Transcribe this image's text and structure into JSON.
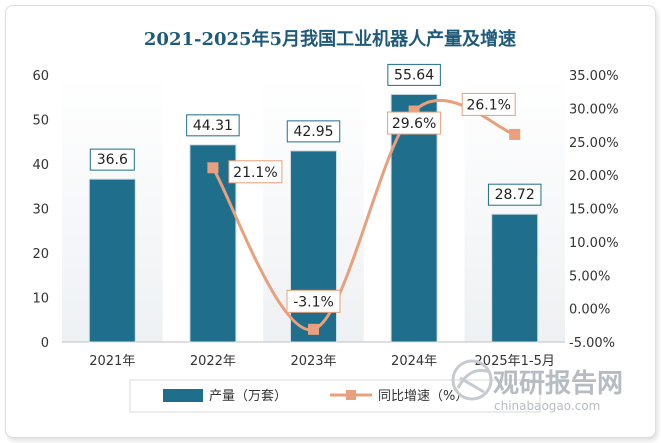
{
  "chart_data": {
    "type": "bar",
    "title": "2021-2025年5月我国工业机器人产量及增速",
    "categories": [
      "2021年",
      "2022年",
      "2023年",
      "2024年",
      "2025年1-5月"
    ],
    "series": [
      {
        "name": "产量（万套）",
        "type": "bar",
        "axis": "left",
        "values": [
          36.6,
          44.31,
          42.95,
          55.64,
          28.72
        ],
        "labels": [
          "36.6",
          "44.31",
          "42.95",
          "55.64",
          "28.72"
        ],
        "color": "#1f6e8c"
      },
      {
        "name": "同比增速（%）",
        "type": "line",
        "axis": "right",
        "values": [
          null,
          21.1,
          -3.1,
          29.6,
          26.1
        ],
        "labels": [
          "",
          "21.1%",
          "-3.1%",
          "29.6%",
          "26.1%"
        ],
        "color": "#e8a07e"
      }
    ],
    "y_left": {
      "min": 0,
      "max": 60,
      "ticks": [
        0,
        10,
        20,
        30,
        40,
        50,
        60
      ],
      "tick_labels": [
        "0",
        "10",
        "20",
        "30",
        "40",
        "50",
        "60"
      ]
    },
    "y_right": {
      "min": -5,
      "max": 35,
      "ticks": [
        -5,
        0,
        5,
        10,
        15,
        20,
        25,
        30,
        35
      ],
      "tick_labels": [
        "-5.00%",
        "0.00%",
        "5.00%",
        "10.00%",
        "15.00%",
        "20.00%",
        "25.00%",
        "30.00%",
        "35.00%"
      ]
    },
    "grid": false,
    "legend_position": "bottom"
  },
  "watermark": {
    "text": "观研报告网",
    "url": "chinabaogao.com"
  }
}
